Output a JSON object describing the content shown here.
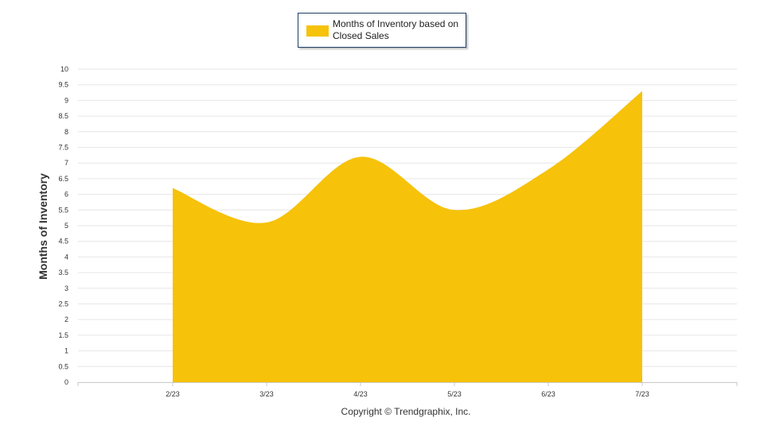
{
  "chart_data": {
    "type": "area",
    "categories": [
      "2/23",
      "3/23",
      "4/23",
      "5/23",
      "6/23",
      "7/23"
    ],
    "series": [
      {
        "name": "Months of Inventory based on Closed Sales",
        "values": [
          6.2,
          5.1,
          7.2,
          5.5,
          6.8,
          9.3
        ]
      }
    ],
    "title": "",
    "xlabel": "",
    "ylabel": "Months of Inventory",
    "ylim": [
      0,
      10
    ],
    "yticks": [
      "0",
      "0.5",
      "1",
      "1.5",
      "2",
      "2.5",
      "3",
      "3.5",
      "4",
      "4.5",
      "5",
      "5.5",
      "6",
      "6.5",
      "7",
      "7.5",
      "8",
      "8.5",
      "9",
      "9.5",
      "10"
    ],
    "grid": true,
    "legend_position": "top-center",
    "colors": {
      "fill": "#F6C20A",
      "grid": "#e6e6e6",
      "legend_border": "#1f3e66"
    }
  },
  "footer": {
    "credit": "Copyright © Trendgraphix, Inc."
  }
}
